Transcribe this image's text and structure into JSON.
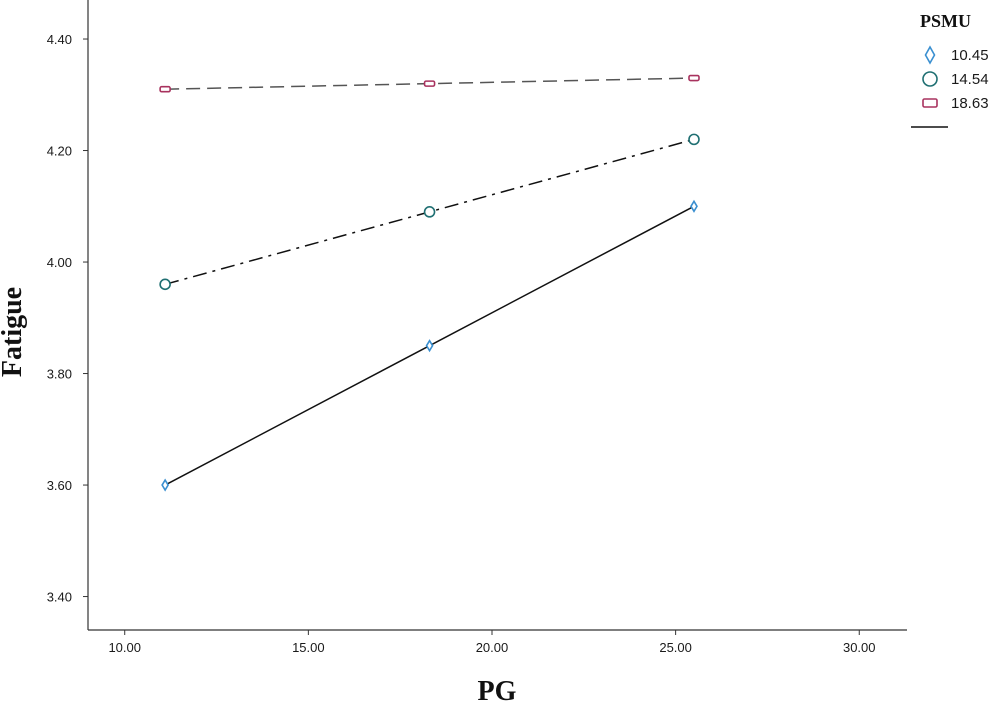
{
  "chart_data": {
    "type": "line",
    "xlabel": "PG",
    "ylabel": "Fatigue",
    "xlim": [
      9,
      31.3
    ],
    "ylim": [
      3.34,
      4.47
    ],
    "x_ticks": [
      "10.00",
      "15.00",
      "20.00",
      "25.00",
      "30.00"
    ],
    "x_tick_values": [
      10,
      15,
      20,
      25,
      30
    ],
    "y_ticks": [
      "3.40",
      "3.60",
      "3.80",
      "4.00",
      "4.20",
      "4.40"
    ],
    "y_tick_values": [
      3.4,
      3.6,
      3.8,
      4.0,
      4.2,
      4.4
    ],
    "grid": false,
    "legend": {
      "title": "PSMU",
      "position": "top-right",
      "entries": [
        "10.45",
        "14.54",
        "18.63",
        ""
      ]
    },
    "x": [
      11.1,
      18.3,
      25.5
    ],
    "series": [
      {
        "name": "10.45",
        "values": [
          3.6,
          3.85,
          4.1
        ],
        "marker": "diamond",
        "marker_color": "#3a8fd0",
        "line": "solid",
        "line_color": "#111111"
      },
      {
        "name": "14.54",
        "values": [
          3.96,
          4.09,
          4.22
        ],
        "marker": "circle",
        "marker_color": "#1f6f72",
        "line": "dash-dot",
        "line_color": "#111111"
      },
      {
        "name": "18.63",
        "values": [
          4.31,
          4.32,
          4.33
        ],
        "marker": "square",
        "marker_color": "#a8325e",
        "line": "dashed",
        "line_color": "#555555"
      }
    ]
  }
}
